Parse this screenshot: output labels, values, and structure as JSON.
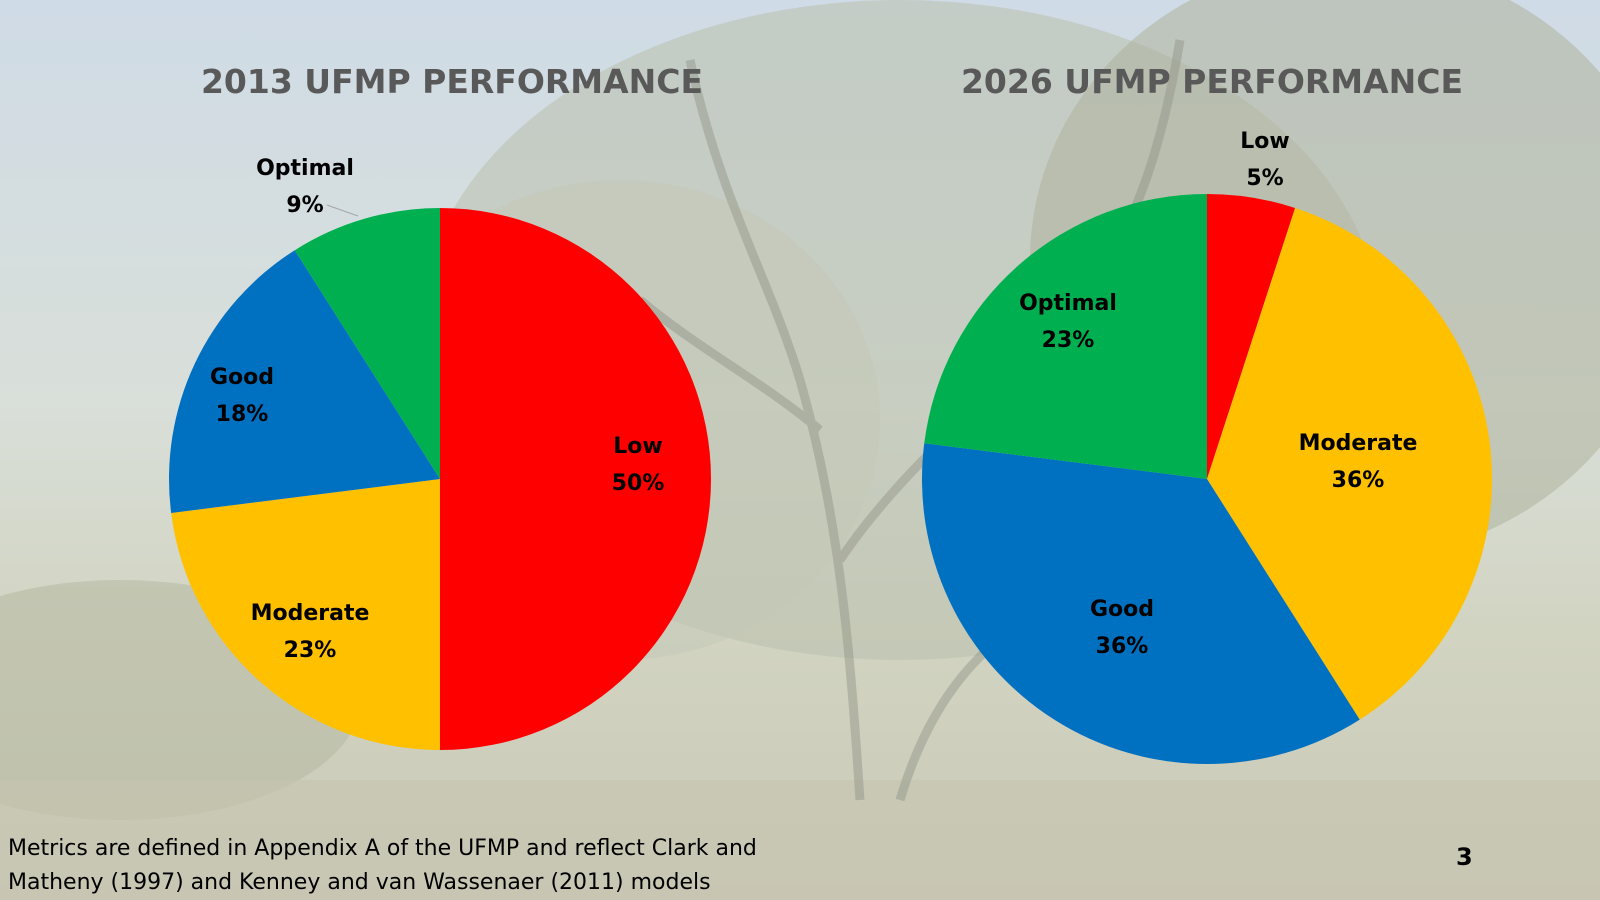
{
  "chart_data": [
    {
      "type": "pie",
      "title": "2013 UFMP PERFORMANCE",
      "slices": [
        {
          "label": "Low",
          "value": 50,
          "display": "50%",
          "color": "#FF0000"
        },
        {
          "label": "Moderate",
          "value": 23,
          "display": "23%",
          "color": "#FFC000"
        },
        {
          "label": "Good",
          "value": 18,
          "display": "18%",
          "color": "#0070C0"
        },
        {
          "label": "Optimal",
          "value": 9,
          "display": "9%",
          "color": "#00B050"
        }
      ]
    },
    {
      "type": "pie",
      "title": "2026 UFMP PERFORMANCE",
      "slices": [
        {
          "label": "Low",
          "value": 5,
          "display": "5%",
          "color": "#FF0000"
        },
        {
          "label": "Moderate",
          "value": 36,
          "display": "36%",
          "color": "#FFC000"
        },
        {
          "label": "Good",
          "value": 36,
          "display": "36%",
          "color": "#0070C0"
        },
        {
          "label": "Optimal",
          "value": 23,
          "display": "23%",
          "color": "#00B050"
        }
      ]
    }
  ],
  "footnote": {
    "line1": "Metrics are defined in Appendix A of the UFMP  and reflect Clark and",
    "line2": "Matheny (1997) and Kenney and van Wassenaer (2011) models"
  },
  "page_number": "3"
}
